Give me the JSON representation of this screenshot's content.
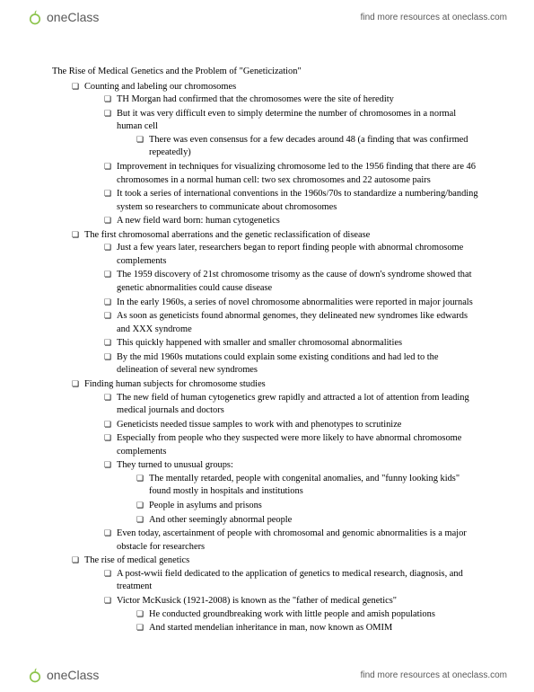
{
  "brand": {
    "name_part1": "one",
    "name_part2": "Class",
    "link_text": "find more resources at oneclass.com",
    "logo_color": "#8bc34a"
  },
  "doc": {
    "title": "The Rise of Medical Genetics and the Problem of \"Geneticization\"",
    "sections": [
      {
        "heading": "Counting and labeling our chromosomes",
        "items": [
          {
            "text": "TH Morgan had confirmed that the chromosomes were the site of heredity"
          },
          {
            "text": "But it was very difficult even to simply determine the number of chromosomes in a normal human cell",
            "children": [
              {
                "text": "There was even consensus for a few decades around 48 (a finding that was confirmed repeatedly)"
              }
            ]
          },
          {
            "text": "Improvement in techniques for visualizing chromosome led to the 1956 finding that there are 46 chromosomes in a normal human cell: two sex chromosomes and 22 autosome pairs"
          },
          {
            "text": "It took a series of international conventions in the 1960s/70s to standardize a numbering/banding system so researchers to communicate about chromosomes"
          },
          {
            "text": "A new field ward born: human cytogenetics"
          }
        ]
      },
      {
        "heading": "The first chromosomal aberrations and the genetic reclassification of disease",
        "items": [
          {
            "text": "Just a few years later, researchers began to report finding people with abnormal chromosome complements"
          },
          {
            "text": "The 1959 discovery of 21st chromosome trisomy as the cause of down's syndrome showed that genetic abnormalities could cause disease"
          },
          {
            "text": "In the early 1960s, a series of novel chromosome abnormalities were reported in major journals"
          },
          {
            "text": "As soon as geneticists found abnormal genomes, they delineated new syndromes like edwards and XXX syndrome"
          },
          {
            "text": "This quickly happened with smaller and smaller chromosomal abnormalities"
          },
          {
            "text": "By the mid 1960s mutations could explain some existing conditions and had led to the delineation of several new syndromes"
          }
        ]
      },
      {
        "heading": "Finding human subjects for chromosome studies",
        "items": [
          {
            "text": "The new field of human cytogenetics grew rapidly and attracted a lot of attention from leading medical journals and doctors"
          },
          {
            "text": "Geneticists needed tissue samples to work with and phenotypes to scrutinize"
          },
          {
            "text": "Especially from people who they suspected were more likely to have abnormal chromosome complements"
          },
          {
            "text": "They turned to unusual groups:",
            "children": [
              {
                "text": "The mentally retarded, people with congenital anomalies, and \"funny looking kids\" found mostly in hospitals and institutions"
              },
              {
                "text": "People in asylums and prisons"
              },
              {
                "text": "And other seemingly abnormal people"
              }
            ]
          },
          {
            "text": "Even today, ascertainment of people with chromosomal and genomic abnormalities is a major obstacle for researchers"
          }
        ]
      },
      {
        "heading": "The rise of medical genetics",
        "items": [
          {
            "text": "A post-wwii field dedicated to the application of genetics to medical research, diagnosis, and treatment"
          },
          {
            "text": "Victor McKusick (1921-2008) is known as the \"father of medical genetics\"",
            "children": [
              {
                "text": "He conducted groundbreaking work with little people and amish populations"
              },
              {
                "text": "And started mendelian inheritance in man, now known as OMIM"
              }
            ]
          }
        ]
      }
    ]
  }
}
